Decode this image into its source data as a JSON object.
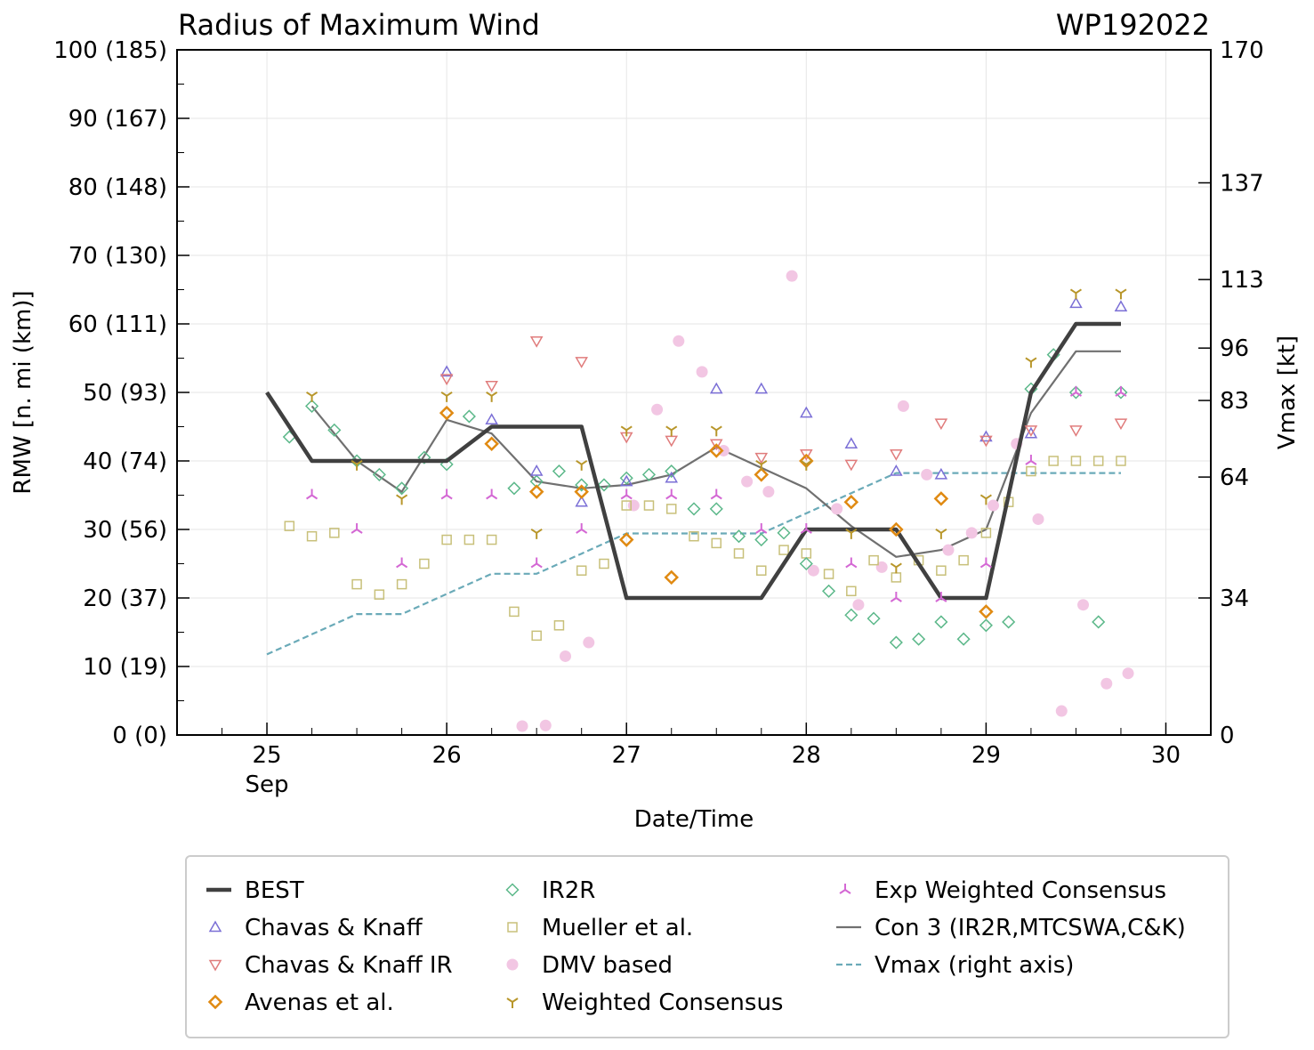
{
  "chart_data": {
    "type": "scatter",
    "title": "Radius of Maximum Wind",
    "storm_id": "WP192022",
    "xlabel": "Date/Time",
    "ylabel": "RMW [n. mi (km)]",
    "y2label": "Vmax [kt]",
    "xlim": [
      24.5,
      30.25
    ],
    "ylim": [
      0,
      100
    ],
    "x_ticks": [
      {
        "value": 25,
        "label": "25",
        "sub": "Sep"
      },
      {
        "value": 26,
        "label": "26",
        "sub": ""
      },
      {
        "value": 27,
        "label": "27",
        "sub": ""
      },
      {
        "value": 28,
        "label": "28",
        "sub": ""
      },
      {
        "value": 29,
        "label": "29",
        "sub": ""
      },
      {
        "value": 30,
        "label": "30",
        "sub": ""
      }
    ],
    "y_ticks": [
      {
        "value": 0,
        "label": "0 (0)"
      },
      {
        "value": 10,
        "label": "10 (19)"
      },
      {
        "value": 20,
        "label": "20 (37)"
      },
      {
        "value": 30,
        "label": "30 (56)"
      },
      {
        "value": 40,
        "label": "40 (74)"
      },
      {
        "value": 50,
        "label": "50 (93)"
      },
      {
        "value": 60,
        "label": "60 (111)"
      },
      {
        "value": 70,
        "label": "70 (130)"
      },
      {
        "value": 80,
        "label": "80 (148)"
      },
      {
        "value": 90,
        "label": "90 (167)"
      },
      {
        "value": 100,
        "label": "100 (185)"
      }
    ],
    "y2_ticks": [
      {
        "value": 0,
        "label": "0"
      },
      {
        "value": 34,
        "label": "34"
      },
      {
        "value": 64,
        "label": "64"
      },
      {
        "value": 83,
        "label": "83"
      },
      {
        "value": 96,
        "label": "96"
      },
      {
        "value": 113,
        "label": "113"
      },
      {
        "value": 137,
        "label": "137"
      },
      {
        "value": 170,
        "label": "170"
      }
    ],
    "y2lim": [
      0,
      170
    ],
    "legend_position": "below",
    "series": [
      {
        "name": "BEST",
        "marker": "line-thick",
        "color": "#404040",
        "x": [
          25.0,
          25.25,
          25.5,
          25.75,
          26.0,
          26.25,
          26.5,
          26.75,
          27.0,
          27.25,
          27.5,
          27.75,
          28.0,
          28.25,
          28.5,
          28.75,
          29.0,
          29.25,
          29.5,
          29.75
        ],
        "y": [
          50,
          40,
          40,
          40,
          40,
          45,
          45,
          45,
          20,
          20,
          20,
          20,
          30,
          30,
          30,
          20,
          20,
          50,
          60,
          60
        ]
      },
      {
        "name": "Chavas & Knaff",
        "marker": "triangle-up",
        "color": "#7b6fd6",
        "x": [
          26.0,
          26.25,
          26.5,
          26.75,
          27.0,
          27.25,
          27.5,
          27.75,
          28.0,
          28.25,
          28.5,
          28.75,
          29.0,
          29.25,
          29.5,
          29.75
        ],
        "y": [
          53,
          46,
          38.5,
          34,
          37,
          37.5,
          50.5,
          50.5,
          47,
          42.5,
          38.5,
          38,
          43.5,
          44,
          63,
          62.5
        ]
      },
      {
        "name": "Chavas & Knaff IR",
        "marker": "triangle-down",
        "color": "#e07c7c",
        "x": [
          26.0,
          26.25,
          26.5,
          26.75,
          27.0,
          27.25,
          27.5,
          27.75,
          28.0,
          28.25,
          28.5,
          28.75,
          29.0,
          29.25,
          29.5,
          29.75
        ],
        "y": [
          52,
          51,
          57.5,
          54.5,
          43.5,
          43,
          42.5,
          40.5,
          41,
          39.5,
          41,
          45.5,
          43,
          44.5,
          44.5,
          45.5
        ]
      },
      {
        "name": "Avenas et al.",
        "marker": "diamond",
        "color": "#e08a12",
        "x": [
          26.0,
          26.25,
          26.5,
          26.75,
          27.0,
          27.25,
          27.5,
          27.75,
          28.0,
          28.25,
          28.5,
          28.75,
          29.0
        ],
        "y": [
          47,
          42.5,
          35.5,
          35.5,
          28.5,
          23,
          41.5,
          38,
          40,
          34,
          30,
          34.5,
          18
        ]
      },
      {
        "name": "IR2R",
        "marker": "diamond",
        "color": "#5cb88a",
        "x": [
          25.125,
          25.25,
          25.375,
          25.5,
          25.625,
          25.75,
          25.875,
          26.0,
          26.125,
          26.25,
          26.375,
          26.5,
          26.625,
          26.75,
          26.875,
          27.0,
          27.125,
          27.25,
          27.375,
          27.5,
          27.625,
          27.75,
          27.875,
          28.0,
          28.125,
          28.25,
          28.375,
          28.5,
          28.625,
          28.75,
          28.875,
          29.0,
          29.125,
          29.25,
          29.375,
          29.5,
          29.625,
          29.75
        ],
        "y": [
          43.5,
          48,
          44.5,
          40,
          38,
          36,
          40.5,
          39.5,
          46.5,
          42.5,
          36,
          37,
          38.5,
          36.5,
          36.5,
          37.5,
          38,
          38.5,
          33,
          33,
          29,
          28.5,
          29.5,
          25,
          21,
          17.5,
          17,
          13.5,
          14,
          16.5,
          14,
          16,
          16.5,
          50.5,
          55.5,
          50,
          16.5,
          50
        ]
      },
      {
        "name": "Mueller et al.",
        "marker": "square",
        "color": "#c8c07a",
        "x": [
          25.125,
          25.25,
          25.375,
          25.5,
          25.625,
          25.75,
          25.875,
          26.0,
          26.125,
          26.25,
          26.375,
          26.5,
          26.625,
          26.75,
          26.875,
          27.0,
          27.125,
          27.25,
          27.375,
          27.5,
          27.625,
          27.75,
          27.875,
          28.0,
          28.125,
          28.25,
          28.375,
          28.5,
          28.625,
          28.75,
          28.875,
          29.0,
          29.125,
          29.25,
          29.375,
          29.5,
          29.625,
          29.75
        ],
        "y": [
          30.5,
          29,
          29.5,
          22,
          20.5,
          22,
          25,
          28.5,
          28.5,
          28.5,
          18,
          14.5,
          16,
          24,
          25,
          33.5,
          33.5,
          33,
          29,
          28,
          26.5,
          24,
          27,
          26.5,
          23.5,
          21,
          25.5,
          23,
          25.5,
          24,
          25.5,
          29.5,
          34,
          38.5,
          40,
          40,
          40,
          40
        ]
      },
      {
        "name": "DMV based",
        "marker": "circle",
        "color": "#f2c6e3",
        "x": [
          26.42,
          26.55,
          26.66,
          26.79,
          27.04,
          27.17,
          27.29,
          27.42,
          27.54,
          27.67,
          27.79,
          27.92,
          28.04,
          28.17,
          28.29,
          28.42,
          28.54,
          28.67,
          28.79,
          28.92,
          29.04,
          29.17,
          29.29,
          29.42,
          29.54,
          29.67,
          29.79
        ],
        "y": [
          1.3,
          1.4,
          11.5,
          13.5,
          33.5,
          47.5,
          57.5,
          53,
          41.5,
          37,
          35.5,
          67,
          24,
          33,
          19,
          24.5,
          48,
          38,
          27,
          29.5,
          33.5,
          42.5,
          31.5,
          3.5,
          19,
          7.5,
          9
        ]
      },
      {
        "name": "Weighted Consensus",
        "marker": "tri-down",
        "color": "#b8962a",
        "x": [
          25.25,
          25.5,
          25.75,
          26.0,
          26.25,
          26.5,
          26.75,
          27.0,
          27.25,
          27.5,
          27.75,
          28.0,
          28.25,
          28.5,
          28.75,
          29.0,
          29.25,
          29.5,
          29.75
        ],
        "y": [
          49.5,
          39.5,
          34.5,
          49.5,
          49.5,
          29.5,
          39.5,
          44.5,
          44.5,
          44.5,
          39.5,
          39.5,
          29.5,
          24.5,
          29.5,
          34.5,
          54.5,
          64.5,
          64.5
        ]
      },
      {
        "name": "Exp Weighted Consensus",
        "marker": "tri-up",
        "color": "#d468d4",
        "x": [
          25.25,
          25.5,
          25.75,
          26.0,
          26.25,
          26.5,
          26.75,
          27.0,
          27.25,
          27.5,
          27.75,
          28.0,
          28.25,
          28.5,
          28.75,
          29.0,
          29.25,
          29.5,
          29.75
        ],
        "y": [
          35,
          30,
          25,
          35,
          35,
          25,
          30,
          35,
          35,
          35,
          30,
          30,
          25,
          20,
          20,
          25,
          40,
          50,
          50
        ]
      },
      {
        "name": "Con 3 (IR2R,MTCSWA,C&K)",
        "marker": "line",
        "color": "#707070",
        "x": [
          25.25,
          25.5,
          25.75,
          26.0,
          26.25,
          26.5,
          26.75,
          27.0,
          27.25,
          27.5,
          27.75,
          28.0,
          28.25,
          28.5,
          28.75,
          29.0,
          29.25,
          29.5,
          29.75
        ],
        "y": [
          48,
          40,
          35.5,
          46,
          44,
          37,
          36,
          36.5,
          38,
          42,
          39,
          36,
          30.5,
          26,
          27,
          30,
          47,
          56,
          56
        ]
      },
      {
        "name": "Vmax (right axis)",
        "marker": "dashed",
        "color": "#6aaab8",
        "axis": "right",
        "x": [
          25.0,
          25.25,
          25.5,
          25.75,
          26.0,
          26.25,
          26.5,
          26.75,
          27.0,
          27.25,
          27.5,
          27.75,
          28.0,
          28.25,
          28.5,
          28.75,
          29.0,
          29.25,
          29.5,
          29.75
        ],
        "y": [
          20,
          25,
          30,
          30,
          35,
          40,
          40,
          45,
          50,
          50,
          50,
          50,
          55,
          60,
          65,
          65,
          65,
          65,
          65,
          65
        ]
      }
    ],
    "legend": [
      "BEST",
      "Chavas & Knaff",
      "Chavas & Knaff IR",
      "Avenas et al.",
      "IR2R",
      "Mueller et al.",
      "DMV based",
      "Weighted Consensus",
      "Exp Weighted Consensus",
      "Con 3 (IR2R,MTCSWA,C&K)",
      "Vmax (right axis)"
    ]
  }
}
